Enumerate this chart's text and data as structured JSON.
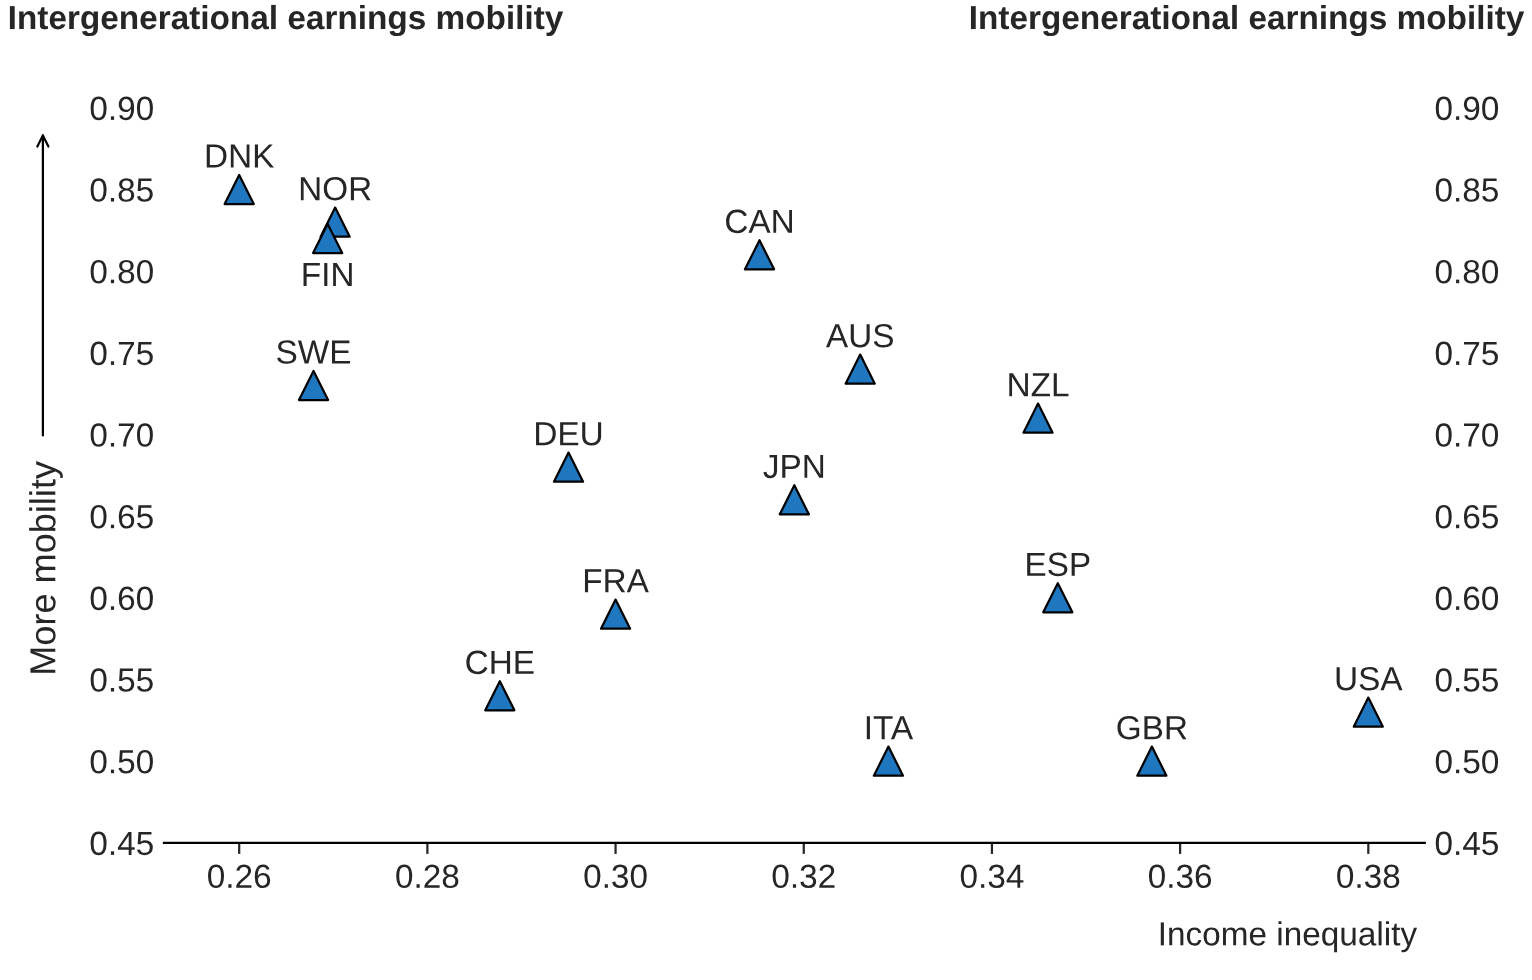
{
  "chart_data": {
    "type": "scatter",
    "ylabel": "Intergenerational earnings mobility",
    "y2label": "Intergenerational earnings mobility",
    "xlabel": "Income inequality",
    "annotations": [
      "More mobility",
      {
        "text": "DNK",
        "x": 0.26,
        "y": 0.85
      },
      {
        "text": "NOR",
        "x": 0.2702,
        "y": 0.83
      },
      {
        "text": "FIN",
        "x": 0.2694,
        "y": 0.82
      },
      {
        "text": "CAN",
        "x": 0.3153,
        "y": 0.81
      },
      {
        "text": "SWE",
        "x": 0.2679,
        "y": 0.73
      },
      {
        "text": "AUS",
        "x": 0.326,
        "y": 0.74
      },
      {
        "text": "NZL",
        "x": 0.3449,
        "y": 0.71
      },
      {
        "text": "DEU",
        "x": 0.295,
        "y": 0.68
      },
      {
        "text": "JPN",
        "x": 0.319,
        "y": 0.66
      },
      {
        "text": "FRA",
        "x": 0.3,
        "y": 0.59
      },
      {
        "text": "ESP",
        "x": 0.347,
        "y": 0.6
      },
      {
        "text": "CHE",
        "x": 0.2877,
        "y": 0.54
      },
      {
        "text": "ITA",
        "x": 0.329,
        "y": 0.5
      },
      {
        "text": "GBR",
        "x": 0.357,
        "y": 0.5
      },
      {
        "text": "USA",
        "x": 0.38,
        "y": 0.53
      }
    ],
    "series": [
      {
        "color": "#1f77c0",
        "x": [
          0.26,
          0.2702,
          0.2694,
          0.3153,
          0.2679,
          0.326,
          0.3449,
          0.295,
          0.319,
          0.3,
          0.347,
          0.2877,
          0.329,
          0.357,
          0.38
        ],
        "values": [
          0.85,
          0.83,
          0.82,
          0.81,
          0.73,
          0.74,
          0.71,
          0.68,
          0.66,
          0.59,
          0.6,
          0.54,
          0.5,
          0.5,
          0.53
        ]
      }
    ],
    "marker": "triangle",
    "xlim": [
      0.252,
      0.386
    ],
    "xticks": [
      {
        "value": 0.26,
        "label": "0.26"
      },
      {
        "value": 0.28,
        "label": "0.28"
      },
      {
        "value": 0.3,
        "label": "0.30"
      },
      {
        "value": 0.32,
        "label": "0.32"
      },
      {
        "value": 0.34,
        "label": "0.34"
      },
      {
        "value": 0.36,
        "label": "0.36"
      },
      {
        "value": 0.38,
        "label": "0.38"
      }
    ],
    "ylim": [
      0.45,
      0.9
    ],
    "yticks": [
      {
        "value": 0.45,
        "label": "0.45"
      },
      {
        "value": 0.5,
        "label": "0.50"
      },
      {
        "value": 0.55,
        "label": "0.55"
      },
      {
        "value": 0.6,
        "label": "0.60"
      },
      {
        "value": 0.65,
        "label": "0.65"
      },
      {
        "value": 0.7,
        "label": "0.70"
      },
      {
        "value": 0.75,
        "label": "0.75"
      },
      {
        "value": 0.8,
        "label": "0.80"
      },
      {
        "value": 0.85,
        "label": "0.85"
      },
      {
        "value": 0.9,
        "label": "0.90"
      }
    ],
    "y2lim": [
      0.45,
      0.9
    ],
    "y2ticks": [
      {
        "value": 0.45,
        "label": "0.45"
      },
      {
        "value": 0.5,
        "label": "0.50"
      },
      {
        "value": 0.55,
        "label": "0.55"
      },
      {
        "value": 0.6,
        "label": "0.60"
      },
      {
        "value": 0.65,
        "label": "0.65"
      },
      {
        "value": 0.7,
        "label": "0.70"
      },
      {
        "value": 0.75,
        "label": "0.75"
      },
      {
        "value": 0.8,
        "label": "0.80"
      },
      {
        "value": 0.85,
        "label": "0.85"
      },
      {
        "value": 0.9,
        "label": "0.90"
      }
    ]
  }
}
